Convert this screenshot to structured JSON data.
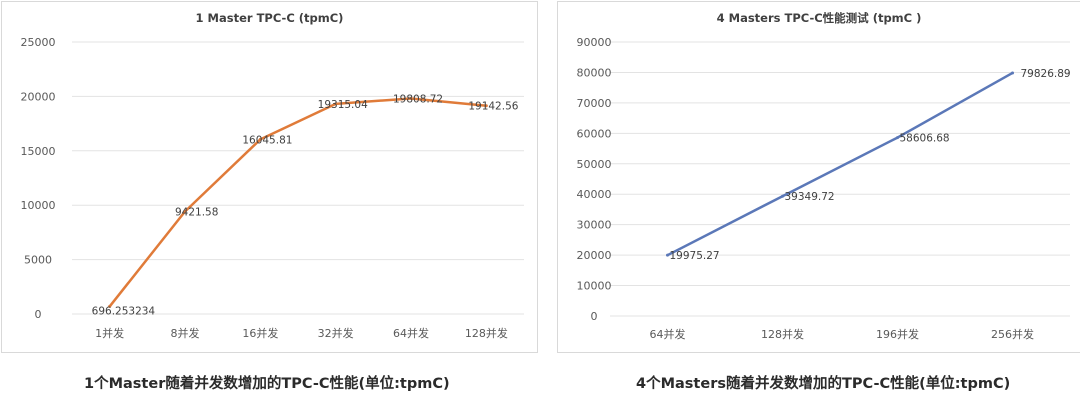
{
  "chart_data": [
    {
      "type": "line",
      "title": "1 Master TPC-C (tpmC)",
      "categories": [
        "1并发",
        "8并发",
        "16并发",
        "32并发",
        "64并发",
        "128并发"
      ],
      "values": [
        696.253234,
        9421.58,
        16045.81,
        19315.04,
        19808.72,
        19142.56
      ],
      "value_labels": [
        "696.253234",
        "9421.58",
        "16045.81",
        "19315.04",
        "19808.72",
        "19142.56"
      ],
      "yticks": [
        "0",
        "5000",
        "10000",
        "15000",
        "20000",
        "25000"
      ],
      "ylim": [
        0,
        25000
      ],
      "color": "#e07b39",
      "grid": true,
      "legend": "none"
    },
    {
      "type": "line",
      "title": "4 Masters TPC-C性能测试 (tpmC )",
      "categories": [
        "64并发",
        "128并发",
        "196并发",
        "256并发"
      ],
      "values": [
        19975.27,
        39349.72,
        58606.68,
        79826.89
      ],
      "value_labels": [
        "19975.27",
        "39349.72",
        "58606.68",
        "79826.89"
      ],
      "yticks": [
        "0",
        "10000",
        "20000",
        "30000",
        "40000",
        "50000",
        "60000",
        "70000",
        "80000",
        "90000"
      ],
      "ylim": [
        0,
        90000
      ],
      "color": "#5b78b8",
      "grid": true,
      "legend": "none"
    }
  ],
  "captions": [
    "1个Master随着并发数增加的TPC-C性能(单位:tpmC)",
    "4个Masters随着并发数增加的TPC-C性能(单位:tpmC)"
  ]
}
